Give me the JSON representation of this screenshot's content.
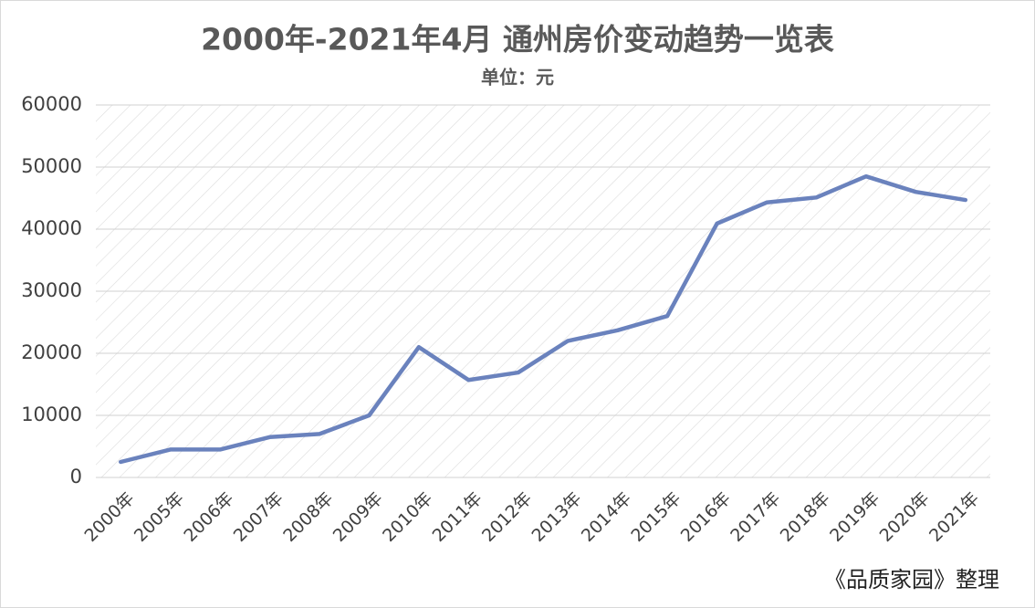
{
  "chart_data": {
    "type": "line",
    "title": "2000年-2021年4月  通州房价变动趋势一览表",
    "subtitle": "单位：元",
    "categories": [
      "2000年",
      "2005年",
      "2006年",
      "2007年",
      "2008年",
      "2009年",
      "2010年",
      "2011年",
      "2012年",
      "2013年",
      "2014年",
      "2015年",
      "2016年",
      "2017年",
      "2018年",
      "2019年",
      "2020年",
      "2021年"
    ],
    "series": [
      {
        "name": "通州房价",
        "color": "#6a82bd",
        "values": [
          2500,
          4500,
          4500,
          6500,
          7000,
          10000,
          21000,
          15700,
          16900,
          22000,
          23700,
          26000,
          40900,
          44300,
          45100,
          48500,
          46000,
          44700
        ]
      }
    ],
    "ylim": [
      0,
      60000
    ],
    "yticks": [
      0,
      10000,
      20000,
      30000,
      40000,
      50000,
      60000
    ],
    "grid": true,
    "source": "《品质家园》整理"
  }
}
